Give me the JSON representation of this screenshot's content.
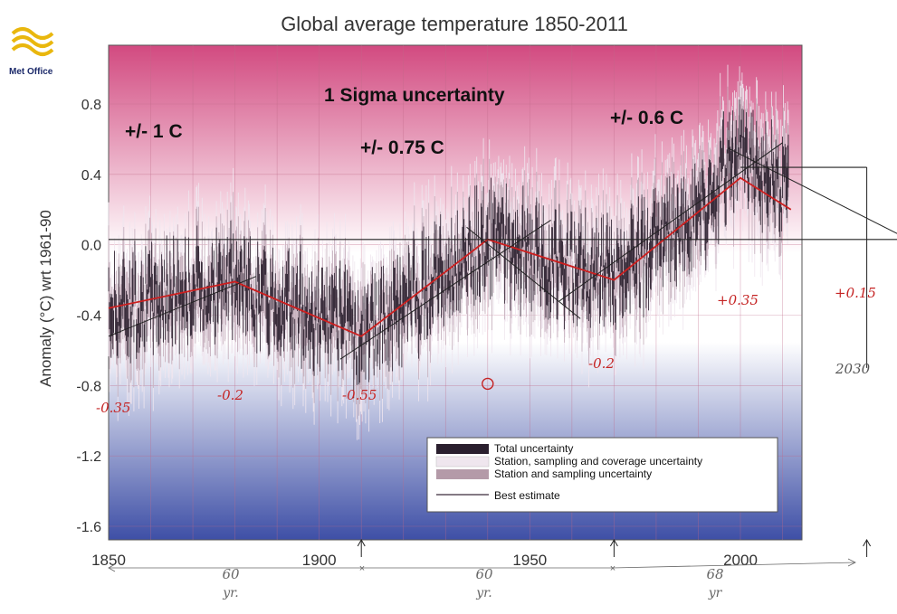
{
  "logo": {
    "text": "Met Office"
  },
  "chart_data": {
    "type": "line",
    "title": "Global average temperature 1850-2011",
    "ylabel": "Anomaly (°C) wrt 1961-90",
    "xlabel": "",
    "xlim": [
      1850,
      2015
    ],
    "ylim": [
      -1.7,
      1.1
    ],
    "x_ticks": [
      1850,
      1900,
      1950,
      2000
    ],
    "y_ticks": [
      0.8,
      0.4,
      0.0,
      -0.4,
      -0.8,
      -1.2,
      -1.6
    ],
    "y_tick_labels": [
      "0.8",
      "0.4",
      "0.0",
      "-0.4",
      "-0.8",
      "-1.2",
      "-1.6"
    ],
    "legend": {
      "placement": "bottom-right",
      "entries": [
        {
          "label": "Total uncertainty",
          "color": "#2a1f2e"
        },
        {
          "label": "Station, sampling and coverage uncertainty",
          "color": "#efe6ee"
        },
        {
          "label": "Station and sampling uncertainty",
          "color": "#b49aa8"
        },
        {
          "label": "Best estimate",
          "color": "#3a2a3a"
        }
      ]
    },
    "annotations": {
      "sigma_heading": "1 Sigma uncertainty",
      "uncertainty_labels": [
        "+/- 1 C",
        "+/-  0.75 C",
        "+/- 0.6 C"
      ],
      "handwritten_values": [
        "-0.35",
        "-0.2",
        "-0.55",
        "-0.2",
        "+0.35",
        "+0.15",
        "2030"
      ],
      "period_labels": [
        {
          "years": "60",
          "unit": "yr."
        },
        {
          "years": "60",
          "unit": "yr."
        },
        {
          "years": "68",
          "unit": "yr"
        }
      ]
    },
    "series": [
      {
        "kind": "trend_polyline",
        "color": "#cc1f1f",
        "x": [
          1850,
          1880,
          1910,
          1940,
          1970,
          2000,
          2012
        ],
        "y": [
          -0.36,
          -0.21,
          -0.52,
          0.03,
          -0.2,
          0.38,
          0.2
        ]
      }
    ],
    "hand_trend_lines": [
      {
        "x": [
          1850,
          1885
        ],
        "y": [
          -0.52,
          -0.18
        ]
      },
      {
        "x": [
          1905,
          1955
        ],
        "y": [
          -0.65,
          0.14
        ]
      },
      {
        "x": [
          1935,
          1962
        ],
        "y": [
          0.1,
          -0.42
        ]
      },
      {
        "x": [
          1957,
          2010
        ],
        "y": [
          -0.32,
          0.58
        ]
      },
      {
        "x": [
          1997,
          2040
        ],
        "y": [
          0.55,
          0.03
        ]
      }
    ],
    "reference_lines": [
      {
        "y": 0.03,
        "x_start": 1850,
        "x_end": 2040
      },
      {
        "y": 0.44,
        "x_start": 2000,
        "x_end": 2030
      }
    ],
    "vertical_marks": [
      1910,
      1970,
      2030
    ],
    "circle_marker": {
      "x": 1940,
      "y": -0.79
    }
  },
  "palette": {
    "top": "#d24a80",
    "mid": "#ffffff",
    "bottom": "#3e4fa6",
    "grid": "#c06a88"
  }
}
